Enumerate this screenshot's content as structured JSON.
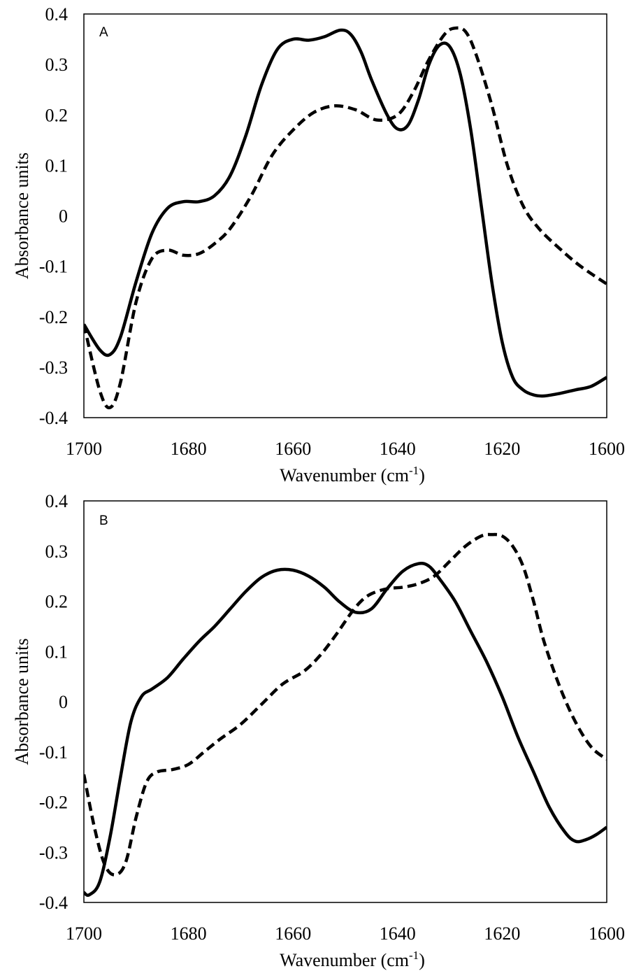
{
  "chart_data": [
    {
      "type": "line",
      "panel_label": "A",
      "xlabel": "Wavenumber (cm",
      "xlabel_superscript": "-1",
      "xlabel_suffix": ")",
      "ylabel": "Absorbance units",
      "xlim": [
        1700,
        1600
      ],
      "ylim": [
        -0.4,
        0.4
      ],
      "x_ticks": [
        "1700",
        "1680",
        "1660",
        "1640",
        "1620",
        "1600"
      ],
      "y_ticks": [
        "0.4",
        "0.3",
        "0.2",
        "0.1",
        "0",
        "-0.1",
        "-0.2",
        "-0.3",
        "-0.4"
      ],
      "grid": false,
      "series": [
        {
          "style": "solid",
          "x": [
            1700,
            1697,
            1695,
            1693,
            1690,
            1687,
            1684,
            1681,
            1678,
            1675,
            1672,
            1669,
            1666,
            1663,
            1660,
            1657,
            1654,
            1651,
            1649,
            1647,
            1645,
            1642,
            1640,
            1638,
            1636,
            1634,
            1632,
            1630,
            1628,
            1626,
            1624,
            1622,
            1620,
            1618,
            1616,
            1614,
            1612,
            1609,
            1606,
            1603,
            1600
          ],
          "y": [
            -0.215,
            -0.265,
            -0.275,
            -0.24,
            -0.13,
            -0.035,
            0.015,
            0.028,
            0.028,
            0.04,
            0.08,
            0.16,
            0.26,
            0.33,
            0.35,
            0.348,
            0.355,
            0.368,
            0.36,
            0.325,
            0.27,
            0.2,
            0.172,
            0.18,
            0.23,
            0.3,
            0.338,
            0.335,
            0.28,
            0.17,
            0.02,
            -0.13,
            -0.25,
            -0.32,
            -0.345,
            -0.355,
            -0.357,
            -0.352,
            -0.345,
            -0.338,
            -0.32
          ]
        },
        {
          "style": "dashed",
          "x": [
            1700,
            1697,
            1695,
            1693,
            1690,
            1687,
            1684,
            1681,
            1678,
            1675,
            1672,
            1668,
            1664,
            1660,
            1656,
            1652,
            1648,
            1644,
            1640,
            1637,
            1634,
            1631,
            1629,
            1627,
            1625,
            1622,
            1619,
            1616,
            1613,
            1609,
            1605,
            1600
          ],
          "y": [
            -0.215,
            -0.345,
            -0.38,
            -0.33,
            -0.17,
            -0.085,
            -0.068,
            -0.078,
            -0.075,
            -0.055,
            -0.025,
            0.04,
            0.12,
            0.17,
            0.205,
            0.218,
            0.21,
            0.19,
            0.2,
            0.245,
            0.31,
            0.36,
            0.372,
            0.365,
            0.32,
            0.22,
            0.1,
            0.02,
            -0.025,
            -0.065,
            -0.1,
            -0.135
          ]
        }
      ]
    },
    {
      "type": "line",
      "panel_label": "B",
      "xlabel": "Wavenumber (cm",
      "xlabel_superscript": "-1",
      "xlabel_suffix": ")",
      "ylabel": "Absorbance units",
      "xlim": [
        1700,
        1600
      ],
      "ylim": [
        -0.4,
        0.4
      ],
      "x_ticks": [
        "1700",
        "1680",
        "1660",
        "1640",
        "1620",
        "1600"
      ],
      "y_ticks": [
        "0.4",
        "0.3",
        "0.2",
        "0.1",
        "0",
        "-0.1",
        "-0.2",
        "-0.3",
        "-0.4"
      ],
      "grid": false,
      "series": [
        {
          "style": "solid",
          "x": [
            1700,
            1699,
            1697,
            1695,
            1693,
            1691,
            1689,
            1687,
            1684,
            1681,
            1678,
            1675,
            1672,
            1669,
            1666,
            1663,
            1660,
            1657,
            1654,
            1651,
            1648,
            1645,
            1642,
            1639,
            1636,
            1634,
            1632,
            1629,
            1626,
            1623,
            1620,
            1617,
            1614,
            1611,
            1608,
            1606,
            1604,
            1602,
            1600
          ],
          "y": [
            -0.38,
            -0.385,
            -0.36,
            -0.27,
            -0.15,
            -0.04,
            0.01,
            0.025,
            0.048,
            0.085,
            0.12,
            0.15,
            0.185,
            0.22,
            0.248,
            0.262,
            0.262,
            0.25,
            0.228,
            0.198,
            0.178,
            0.185,
            0.225,
            0.26,
            0.275,
            0.27,
            0.245,
            0.2,
            0.14,
            0.08,
            0.01,
            -0.07,
            -0.14,
            -0.21,
            -0.26,
            -0.278,
            -0.275,
            -0.265,
            -0.25
          ]
        },
        {
          "style": "dashed",
          "x": [
            1700,
            1698,
            1696,
            1694,
            1692,
            1690,
            1688,
            1686,
            1683,
            1680,
            1677,
            1674,
            1670,
            1666,
            1662,
            1658,
            1655,
            1652,
            1649,
            1647,
            1645,
            1642,
            1639,
            1636,
            1633,
            1630,
            1627,
            1624,
            1622,
            1620,
            1618,
            1616,
            1614,
            1612,
            1609,
            1606,
            1603,
            1600
          ],
          "y": [
            -0.145,
            -0.25,
            -0.325,
            -0.345,
            -0.32,
            -0.23,
            -0.16,
            -0.14,
            -0.135,
            -0.125,
            -0.1,
            -0.075,
            -0.045,
            -0.005,
            0.035,
            0.06,
            0.09,
            0.13,
            0.175,
            0.2,
            0.215,
            0.225,
            0.228,
            0.235,
            0.25,
            0.28,
            0.31,
            0.33,
            0.333,
            0.33,
            0.31,
            0.27,
            0.2,
            0.12,
            0.03,
            -0.04,
            -0.09,
            -0.115
          ]
        }
      ]
    }
  ]
}
